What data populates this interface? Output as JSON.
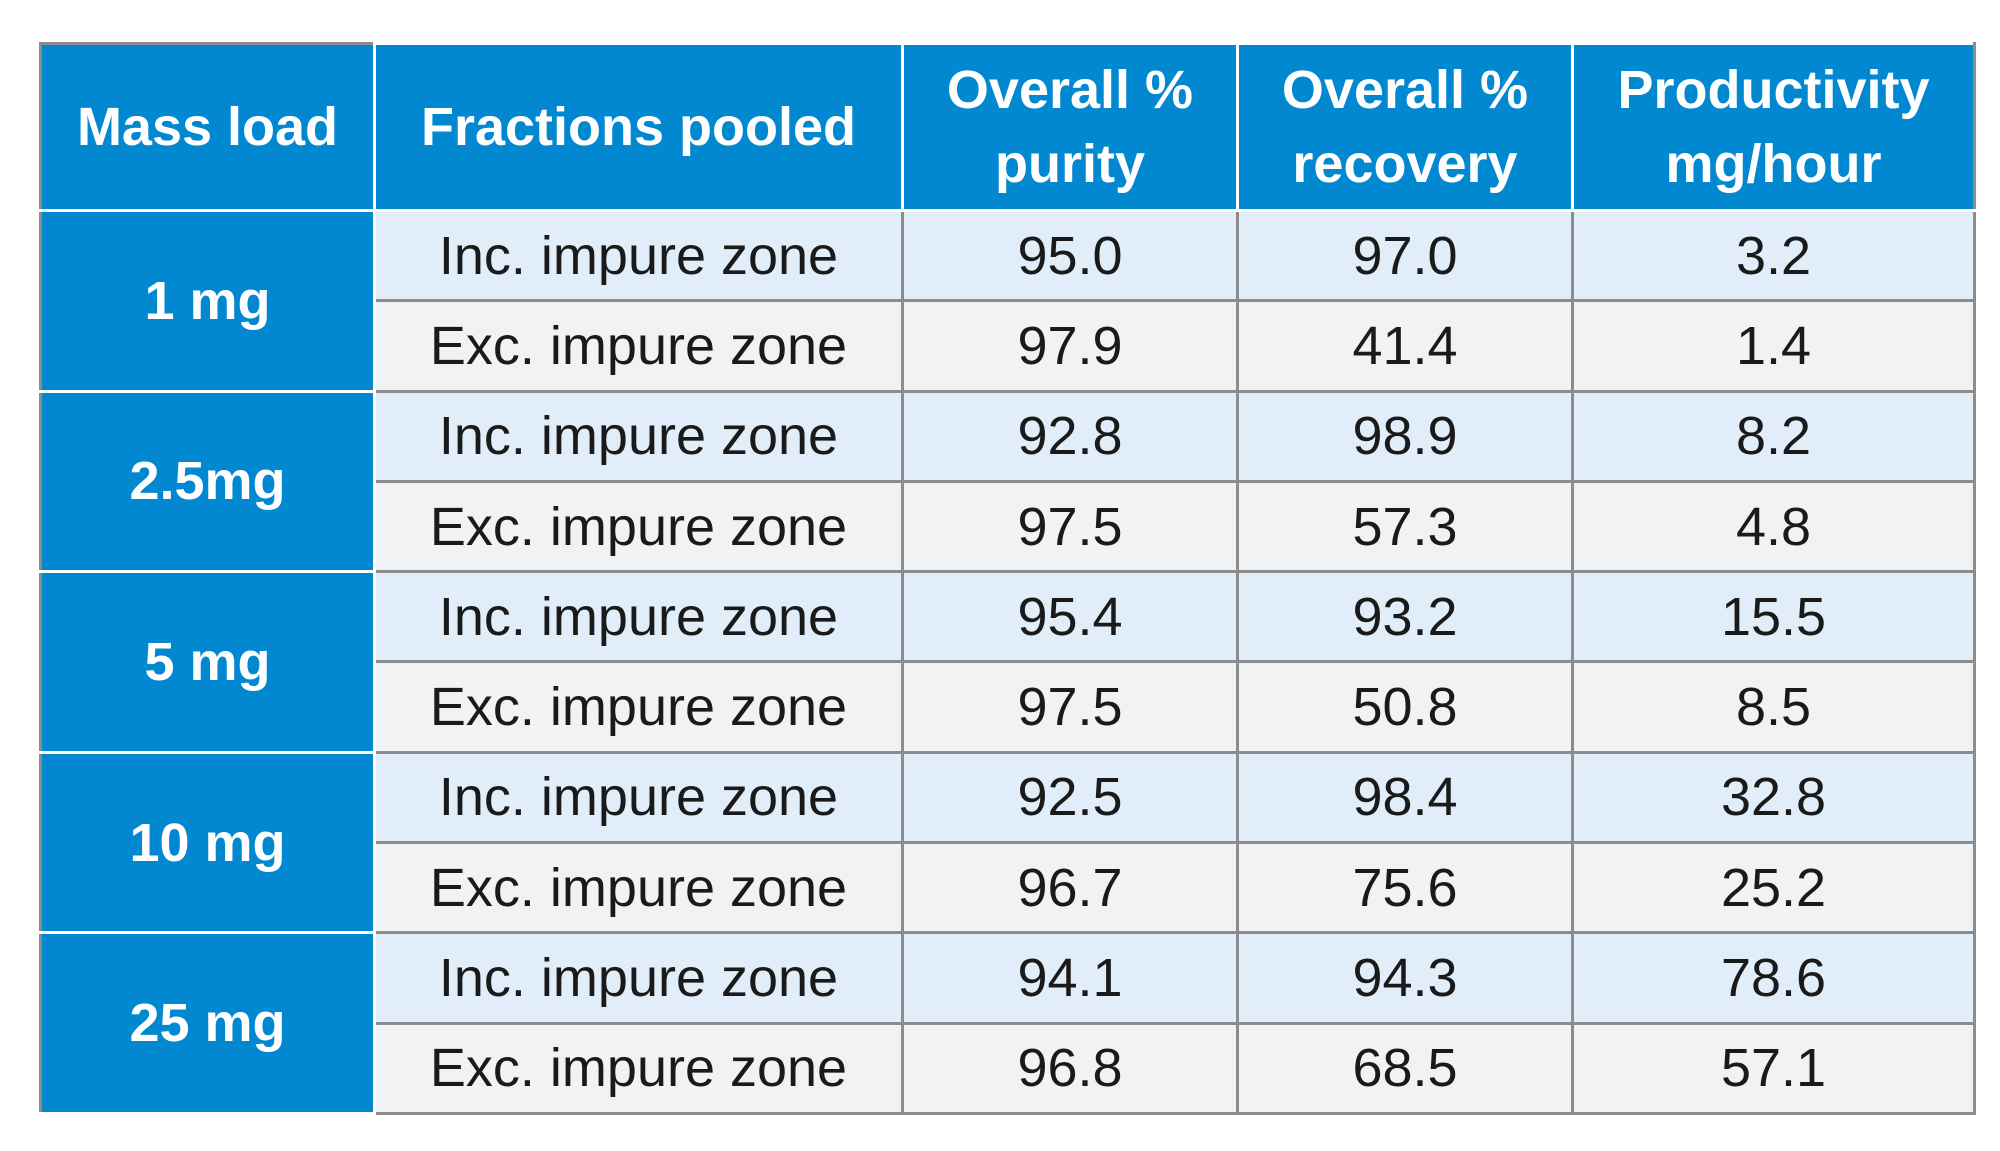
{
  "table": {
    "headers": [
      [
        "Mass load"
      ],
      [
        "Fractions pooled"
      ],
      [
        "Overall %",
        "purity"
      ],
      [
        "Overall %",
        "recovery"
      ],
      [
        "Productivity",
        "mg/hour"
      ]
    ],
    "groups": [
      {
        "mass_load": "1 mg",
        "rows": [
          {
            "fraction": "Inc. impure zone",
            "purity": "95.0",
            "recovery": "97.0",
            "productivity": "3.2"
          },
          {
            "fraction": "Exc. impure zone",
            "purity": "97.9",
            "recovery": "41.4",
            "productivity": "1.4"
          }
        ]
      },
      {
        "mass_load": "2.5mg",
        "rows": [
          {
            "fraction": "Inc. impure zone",
            "purity": "92.8",
            "recovery": "98.9",
            "productivity": "8.2"
          },
          {
            "fraction": "Exc. impure zone",
            "purity": "97.5",
            "recovery": "57.3",
            "productivity": "4.8"
          }
        ]
      },
      {
        "mass_load": "5 mg",
        "rows": [
          {
            "fraction": "Inc. impure zone",
            "purity": "95.4",
            "recovery": "93.2",
            "productivity": "15.5"
          },
          {
            "fraction": "Exc. impure zone",
            "purity": "97.5",
            "recovery": "50.8",
            "productivity": "8.5"
          }
        ]
      },
      {
        "mass_load": "10 mg",
        "rows": [
          {
            "fraction": "Inc. impure zone",
            "purity": "92.5",
            "recovery": "98.4",
            "productivity": "32.8"
          },
          {
            "fraction": "Exc. impure zone",
            "purity": "96.7",
            "recovery": "75.6",
            "productivity": "25.2"
          }
        ]
      },
      {
        "mass_load": "25 mg",
        "rows": [
          {
            "fraction": "Inc. impure zone",
            "purity": "94.1",
            "recovery": "94.3",
            "productivity": "78.6"
          },
          {
            "fraction": "Exc. impure zone",
            "purity": "96.8",
            "recovery": "68.5",
            "productivity": "57.1"
          }
        ]
      }
    ],
    "colors": {
      "header_bg": "#0288d1",
      "header_text": "#ffffff",
      "inc_row_bg": "#e1edf8",
      "exc_row_bg": "#f1f2f4",
      "grid": "#8c8c8c"
    }
  }
}
